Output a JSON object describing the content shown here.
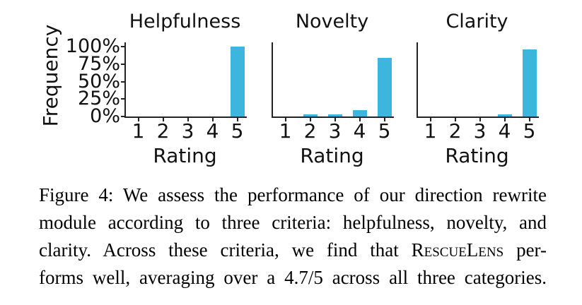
{
  "figure": {
    "bar_color": "#3db6dd",
    "axis_color": "#222222",
    "y_axis": {
      "label": "Frequency",
      "ticks": [
        {
          "label": "100%",
          "value": 100
        },
        {
          "label": "75%",
          "value": 75
        },
        {
          "label": "50%",
          "value": 50
        },
        {
          "label": "25%",
          "value": 25
        },
        {
          "label": "0%",
          "value": 0
        }
      ]
    }
  },
  "chart_data": [
    {
      "type": "bar",
      "title": "Helpfulness",
      "xlabel": "Rating",
      "ylabel": "Frequency",
      "categories": [
        "1",
        "2",
        "3",
        "4",
        "5"
      ],
      "values": [
        0,
        0,
        0,
        0,
        100
      ],
      "ylim": [
        0,
        106
      ],
      "yticks_percent": [
        0,
        25,
        50,
        75,
        100
      ],
      "grid": false,
      "legend": false
    },
    {
      "type": "bar",
      "title": "Novelty",
      "xlabel": "Rating",
      "ylabel": "Frequency",
      "categories": [
        "1",
        "2",
        "3",
        "4",
        "5"
      ],
      "values": [
        0,
        3,
        3,
        9,
        84
      ],
      "ylim": [
        0,
        106
      ],
      "yticks_percent": [
        0,
        25,
        50,
        75,
        100
      ],
      "grid": false,
      "legend": false
    },
    {
      "type": "bar",
      "title": "Clarity",
      "xlabel": "Rating",
      "ylabel": "Frequency",
      "categories": [
        "1",
        "2",
        "3",
        "4",
        "5"
      ],
      "values": [
        0,
        0,
        0,
        3,
        96
      ],
      "ylim": [
        0,
        106
      ],
      "yticks_percent": [
        0,
        25,
        50,
        75,
        100
      ],
      "grid": false,
      "legend": false
    }
  ],
  "caption": {
    "line1": "Figure 4: We assess the performance of our direction rewrite",
    "line2": "module according to three criteria: helpfulness, novelty, and",
    "line3_pre": "clarity. Across these criteria, we find that ",
    "brand": "RescueLens",
    "line3_post": " per-",
    "line4": "forms well, averaging over a 4.7/5 across all three categories."
  }
}
